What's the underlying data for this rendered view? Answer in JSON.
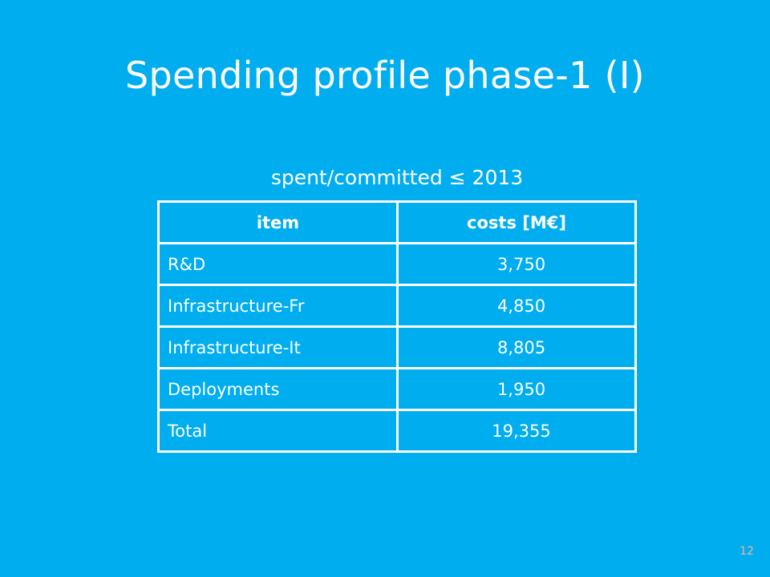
{
  "slide": {
    "title": "Spending profile phase-1 (I)",
    "caption": "spent/committed  ≤ 2013",
    "page_number": "12"
  },
  "table": {
    "headers": [
      "item",
      "costs [M€]"
    ],
    "rows": [
      {
        "item": "R&D",
        "cost": "3,750"
      },
      {
        "item": "Infrastructure-Fr",
        "cost": "4,850"
      },
      {
        "item": "Infrastructure-It",
        "cost": "8,805"
      },
      {
        "item": "Deployments",
        "cost": "1,950"
      },
      {
        "item": "Total",
        "cost": "19,355"
      }
    ]
  },
  "colors": {
    "background": "#00adef",
    "text": "#ffffff",
    "page_number": "#f3b19b"
  }
}
